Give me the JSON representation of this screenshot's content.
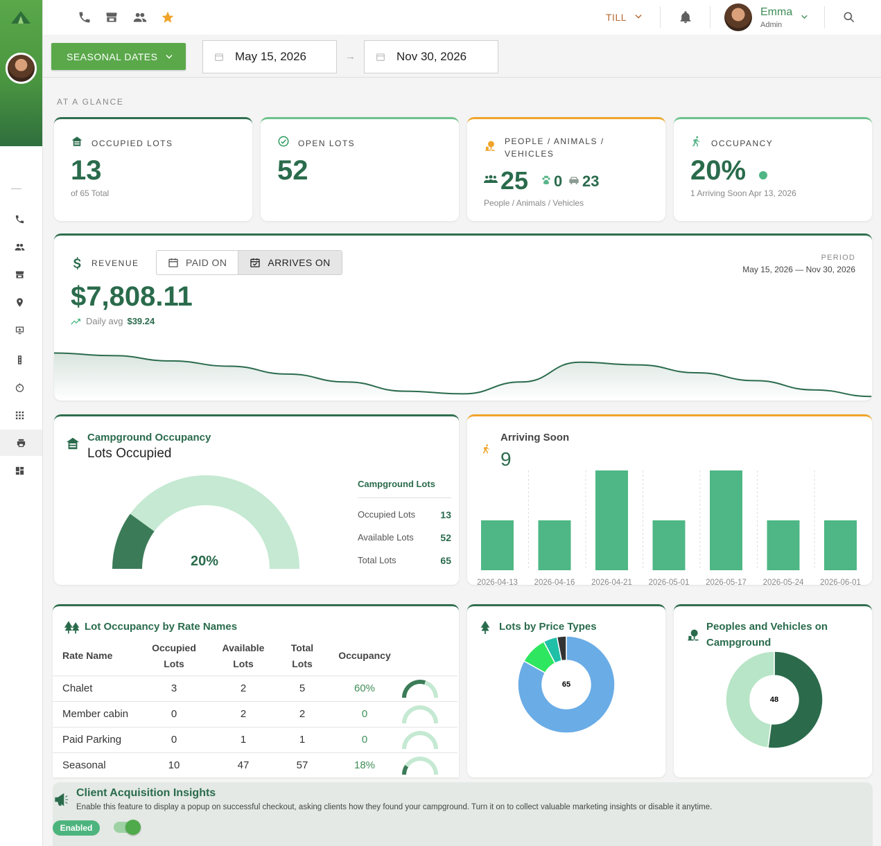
{
  "topbar": {
    "till_label": "TILL",
    "user": {
      "name": "Emma",
      "role": "Admin"
    }
  },
  "filters": {
    "seasonal_label": "SEASONAL DATES",
    "start_date": "May 15, 2026",
    "end_date": "Nov 30, 2026"
  },
  "glance": {
    "section_title": "AT A GLANCE",
    "occupied": {
      "label": "OCCUPIED LOTS",
      "value": "13",
      "sub": "of 65 Total"
    },
    "open": {
      "label": "OPEN LOTS",
      "value": "52"
    },
    "people": {
      "label_line1": "PEOPLE / ANIMALS /",
      "label_line2": "VEHICLES",
      "people": "25",
      "animals": "0",
      "vehicles": "23",
      "sub": "People / Animals / Vehicles"
    },
    "occupancy": {
      "label": "OCCUPANCY",
      "value": "20%",
      "sub": "1 Arriving Soon Apr 13, 2026"
    }
  },
  "revenue": {
    "label": "REVENUE",
    "paid_on": "PAID ON",
    "arrives_on": "ARRIVES ON",
    "period_label": "PERIOD",
    "period_value": "May 15, 2026 — Nov 30, 2026",
    "total": "$7,808.11",
    "daily_avg_label": "Daily avg",
    "daily_avg_value": "$39.24"
  },
  "campground_occupancy": {
    "title": "Campground Occupancy",
    "subtitle": "Lots Occupied",
    "percent_label": "20%",
    "percent": 0.2,
    "table_title": "Campground Lots",
    "rows": [
      {
        "label": "Occupied Lots",
        "value": "13"
      },
      {
        "label": "Available Lots",
        "value": "52"
      },
      {
        "label": "Total Lots",
        "value": "65"
      }
    ]
  },
  "arriving_soon": {
    "title": "Arriving Soon",
    "count": "9"
  },
  "rate_occupancy": {
    "title": "Lot Occupancy by Rate Names",
    "headers": {
      "rate": "Rate Name",
      "occupied_1": "Occupied",
      "occupied_2": "Lots",
      "available_1": "Available",
      "available_2": "Lots",
      "total_1": "Total",
      "total_2": "Lots",
      "occupancy": "Occupancy"
    },
    "rows": [
      {
        "name": "Chalet",
        "occupied": "3",
        "available": "2",
        "total": "5",
        "occupancy": "60%",
        "fraction": 0.6
      },
      {
        "name": "Member cabin",
        "occupied": "0",
        "available": "2",
        "total": "2",
        "occupancy": "0",
        "fraction": 0
      },
      {
        "name": "Paid Parking",
        "occupied": "0",
        "available": "1",
        "total": "1",
        "occupancy": "0",
        "fraction": 0
      },
      {
        "name": "Seasonal",
        "occupied": "10",
        "available": "47",
        "total": "57",
        "occupancy": "18%",
        "fraction": 0.18
      }
    ]
  },
  "price_types": {
    "title": "Lots by Price Types",
    "center": "65"
  },
  "peoples_vehicles": {
    "title_line1": "Peoples and Vehicles on",
    "title_line2": "Campground",
    "center": "48"
  },
  "insights": {
    "title": "Client Acquisition Insights",
    "description": "Enable this feature to display a popup on successful checkout, asking clients how they found your campground. Turn it on to collect valuable marketing insights or disable it anytime.",
    "status": "Enabled"
  },
  "chart_data": [
    {
      "type": "area",
      "x": [
        0,
        1,
        2,
        3,
        4,
        5,
        6,
        7,
        8,
        9,
        10,
        11,
        12,
        13,
        14
      ],
      "values": [
        70,
        66,
        58,
        50,
        38,
        26,
        12,
        8,
        26,
        56,
        52,
        40,
        28,
        14,
        4
      ],
      "title": "",
      "xlabel": "",
      "ylabel": "",
      "grid": false
    },
    {
      "type": "bar",
      "categories": [
        "2026-04-13",
        "2026-04-16",
        "2026-04-21",
        "2026-05-01",
        "2026-05-17",
        "2026-05-24",
        "2026-06-01"
      ],
      "values": [
        1,
        1,
        2,
        1,
        2,
        1,
        1
      ],
      "ylim": [
        0,
        2
      ],
      "title": "Arriving Soon",
      "xlabel": "",
      "ylabel": "",
      "color": "#4eb785"
    },
    {
      "type": "pie",
      "labels": [
        "",
        "",
        "",
        ""
      ],
      "values": [
        54,
        6,
        3,
        2
      ],
      "colors": [
        "#6aace6",
        "#2ee65f",
        "#1fbfa8",
        "#333333"
      ],
      "title": "Lots by Price Types"
    },
    {
      "type": "pie",
      "labels": [
        "",
        ""
      ],
      "values": [
        25,
        23
      ],
      "colors": [
        "#2b6b4c",
        "#b8e5c7"
      ],
      "title": "Peoples and Vehicles on Campground"
    }
  ]
}
